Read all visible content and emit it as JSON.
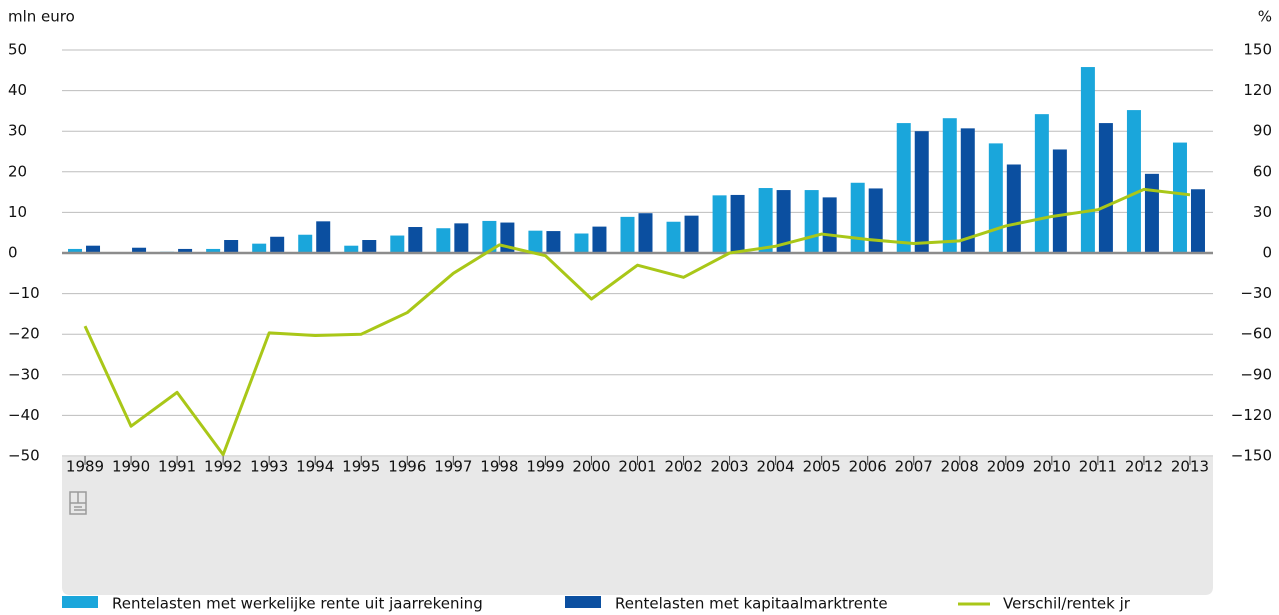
{
  "chart_data": {
    "type": "bar",
    "y_label": "mln euro",
    "y2_label": "%",
    "categories": [
      "1989",
      "1990",
      "1991",
      "1992",
      "1993",
      "1994",
      "1995",
      "1996",
      "1997",
      "1998",
      "1999",
      "2000",
      "2001",
      "2002",
      "2003",
      "2004",
      "2005",
      "2006",
      "2007",
      "2008",
      "2009",
      "2010",
      "2011",
      "2012",
      "2013"
    ],
    "series": [
      {
        "name": "Rentelasten met werkelijke rente uit jaarrekening",
        "type": "bar",
        "color": "#1aa6db",
        "values": [
          1.0,
          0,
          0.3,
          1.0,
          2.3,
          4.5,
          1.8,
          4.3,
          6.1,
          7.9,
          5.5,
          4.8,
          8.9,
          7.7,
          14.2,
          16.0,
          15.5,
          17.3,
          32.0,
          33.2,
          27.0,
          34.2,
          45.8,
          35.2,
          27.2
        ]
      },
      {
        "name": "Rentelasten met kapitaalmarktrente",
        "type": "bar",
        "color": "#0b4fa0",
        "values": [
          1.8,
          1.3,
          1.0,
          3.2,
          4.0,
          7.8,
          3.2,
          6.4,
          7.3,
          7.5,
          5.4,
          6.5,
          9.8,
          9.2,
          14.3,
          15.5,
          13.7,
          15.9,
          30.0,
          30.7,
          21.8,
          25.5,
          32.0,
          19.5,
          15.7
        ]
      },
      {
        "name": "Verschil/rentek jr",
        "type": "line",
        "axis": "y2",
        "color": "#a9c718",
        "values": [
          -54,
          -128,
          -103,
          -149,
          -59,
          -61,
          -60,
          -44,
          -15,
          6,
          -2,
          -34,
          -9,
          -18,
          0,
          5,
          14,
          10,
          7,
          9,
          20,
          27,
          32,
          47,
          43
        ]
      }
    ],
    "ylim": [
      -50,
      50
    ],
    "yticks": [
      {
        "value": -50,
        "label": "−50"
      },
      {
        "value": -40,
        "label": "−40"
      },
      {
        "value": -30,
        "label": "−30"
      },
      {
        "value": -20,
        "label": "−20"
      },
      {
        "value": -10,
        "label": "−10"
      },
      0,
      10,
      20,
      30,
      40,
      50
    ],
    "y2lim": [
      -150,
      150
    ],
    "y2ticks": [
      {
        "value": -150,
        "label": "−150"
      },
      {
        "value": -120,
        "label": "−120"
      },
      {
        "value": -90,
        "label": "−90"
      },
      {
        "value": -60,
        "label": "−60"
      },
      {
        "value": -30,
        "label": "−30"
      },
      0,
      30,
      60,
      90,
      120,
      150
    ],
    "grid": true
  }
}
